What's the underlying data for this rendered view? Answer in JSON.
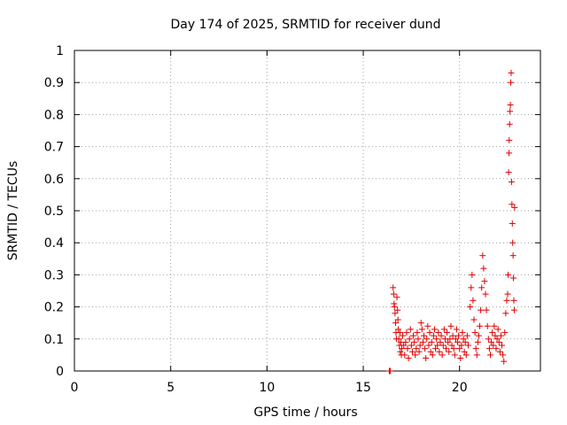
{
  "chart_data": {
    "type": "scatter",
    "title": "Day 174 of 2025, SRMTID for receiver dund",
    "xlabel": "GPS time / hours",
    "ylabel": "SRMTID / TECUs",
    "xlim": [
      0,
      24.2
    ],
    "ylim": [
      0,
      1
    ],
    "xticks": [
      0,
      5,
      10,
      15,
      20
    ],
    "xtick_labels": [
      "0",
      "5",
      "10",
      "15",
      "20"
    ],
    "yticks": [
      0,
      0.1,
      0.2,
      0.3,
      0.4,
      0.5,
      0.6,
      0.7,
      0.8,
      0.9,
      1
    ],
    "ytick_labels": [
      "0",
      "0.1",
      "0.2",
      "0.3",
      "0.4",
      "0.5",
      "0.6",
      "0.7",
      "0.8",
      "0.9",
      "1"
    ],
    "grid": true,
    "marker": "+",
    "color": "#e00000",
    "series": [
      {
        "name": "SRMTID",
        "points": [
          [
            16.35,
            0.0
          ],
          [
            16.38,
            0.0
          ],
          [
            16.4,
            0.0
          ],
          [
            16.55,
            0.26
          ],
          [
            16.58,
            0.24
          ],
          [
            16.6,
            0.21
          ],
          [
            16.62,
            0.2
          ],
          [
            16.65,
            0.18
          ],
          [
            16.68,
            0.15
          ],
          [
            16.7,
            0.12
          ],
          [
            16.72,
            0.1
          ],
          [
            16.75,
            0.23
          ],
          [
            16.78,
            0.19
          ],
          [
            16.8,
            0.16
          ],
          [
            16.82,
            0.13
          ],
          [
            16.85,
            0.1
          ],
          [
            16.88,
            0.08
          ],
          [
            16.9,
            0.12
          ],
          [
            16.92,
            0.06
          ],
          [
            16.95,
            0.09
          ],
          [
            16.98,
            0.05
          ],
          [
            17.0,
            0.07
          ],
          [
            17.05,
            0.11
          ],
          [
            17.1,
            0.08
          ],
          [
            17.15,
            0.05
          ],
          [
            17.2,
            0.09
          ],
          [
            17.25,
            0.12
          ],
          [
            17.3,
            0.07
          ],
          [
            17.35,
            0.04
          ],
          [
            17.4,
            0.1
          ],
          [
            17.45,
            0.13
          ],
          [
            17.5,
            0.08
          ],
          [
            17.55,
            0.06
          ],
          [
            17.6,
            0.11
          ],
          [
            17.65,
            0.09
          ],
          [
            17.7,
            0.05
          ],
          [
            17.75,
            0.07
          ],
          [
            17.8,
            0.12
          ],
          [
            17.85,
            0.1
          ],
          [
            17.9,
            0.06
          ],
          [
            17.95,
            0.08
          ],
          [
            18.0,
            0.15
          ],
          [
            18.05,
            0.13
          ],
          [
            18.1,
            0.09
          ],
          [
            18.15,
            0.11
          ],
          [
            18.2,
            0.07
          ],
          [
            18.25,
            0.04
          ],
          [
            18.3,
            0.1
          ],
          [
            18.35,
            0.14
          ],
          [
            18.4,
            0.08
          ],
          [
            18.45,
            0.12
          ],
          [
            18.5,
            0.06
          ],
          [
            18.55,
            0.09
          ],
          [
            18.6,
            0.05
          ],
          [
            18.65,
            0.11
          ],
          [
            18.7,
            0.13
          ],
          [
            18.75,
            0.07
          ],
          [
            18.8,
            0.1
          ],
          [
            18.85,
            0.08
          ],
          [
            18.9,
            0.12
          ],
          [
            18.95,
            0.06
          ],
          [
            19.0,
            0.09
          ],
          [
            19.05,
            0.11
          ],
          [
            19.1,
            0.05
          ],
          [
            19.15,
            0.08
          ],
          [
            19.2,
            0.13
          ],
          [
            19.25,
            0.1
          ],
          [
            19.3,
            0.07
          ],
          [
            19.35,
            0.12
          ],
          [
            19.4,
            0.09
          ],
          [
            19.45,
            0.06
          ],
          [
            19.5,
            0.1
          ],
          [
            19.55,
            0.14
          ],
          [
            19.6,
            0.08
          ],
          [
            19.65,
            0.11
          ],
          [
            19.7,
            0.07
          ],
          [
            19.75,
            0.05
          ],
          [
            19.8,
            0.1
          ],
          [
            19.85,
            0.13
          ],
          [
            19.9,
            0.09
          ],
          [
            19.95,
            0.11
          ],
          [
            20.0,
            0.07
          ],
          [
            20.05,
            0.04
          ],
          [
            20.1,
            0.08
          ],
          [
            20.15,
            0.12
          ],
          [
            20.2,
            0.1
          ],
          [
            20.25,
            0.06
          ],
          [
            20.3,
            0.09
          ],
          [
            20.35,
            0.05
          ],
          [
            20.4,
            0.11
          ],
          [
            20.45,
            0.08
          ],
          [
            20.55,
            0.2
          ],
          [
            20.6,
            0.26
          ],
          [
            20.65,
            0.3
          ],
          [
            20.7,
            0.22
          ],
          [
            20.75,
            0.16
          ],
          [
            20.8,
            0.12
          ],
          [
            20.85,
            0.07
          ],
          [
            20.9,
            0.05
          ],
          [
            20.95,
            0.09
          ],
          [
            21.0,
            0.11
          ],
          [
            21.05,
            0.14
          ],
          [
            21.1,
            0.19
          ],
          [
            21.15,
            0.26
          ],
          [
            21.2,
            0.36
          ],
          [
            21.25,
            0.32
          ],
          [
            21.3,
            0.28
          ],
          [
            21.35,
            0.24
          ],
          [
            21.4,
            0.19
          ],
          [
            21.45,
            0.14
          ],
          [
            21.5,
            0.1
          ],
          [
            21.55,
            0.07
          ],
          [
            21.6,
            0.05
          ],
          [
            21.65,
            0.09
          ],
          [
            21.7,
            0.12
          ],
          [
            21.75,
            0.08
          ],
          [
            21.8,
            0.14
          ],
          [
            21.85,
            0.11
          ],
          [
            21.9,
            0.07
          ],
          [
            21.95,
            0.1
          ],
          [
            22.0,
            0.13
          ],
          [
            22.05,
            0.09
          ],
          [
            22.1,
            0.06
          ],
          [
            22.15,
            0.11
          ],
          [
            22.2,
            0.08
          ],
          [
            22.25,
            0.05
          ],
          [
            22.3,
            0.03
          ],
          [
            22.35,
            0.12
          ],
          [
            22.4,
            0.18
          ],
          [
            22.45,
            0.22
          ],
          [
            22.5,
            0.24
          ],
          [
            22.52,
            0.3
          ],
          [
            22.55,
            0.62
          ],
          [
            22.57,
            0.68
          ],
          [
            22.58,
            0.72
          ],
          [
            22.6,
            0.77
          ],
          [
            22.62,
            0.81
          ],
          [
            22.64,
            0.83
          ],
          [
            22.66,
            0.9
          ],
          [
            22.68,
            0.93
          ],
          [
            22.7,
            0.59
          ],
          [
            22.72,
            0.52
          ],
          [
            22.74,
            0.46
          ],
          [
            22.76,
            0.4
          ],
          [
            22.78,
            0.36
          ],
          [
            22.8,
            0.29
          ],
          [
            22.82,
            0.22
          ],
          [
            22.84,
            0.19
          ],
          [
            22.86,
            0.51
          ]
        ]
      }
    ]
  }
}
